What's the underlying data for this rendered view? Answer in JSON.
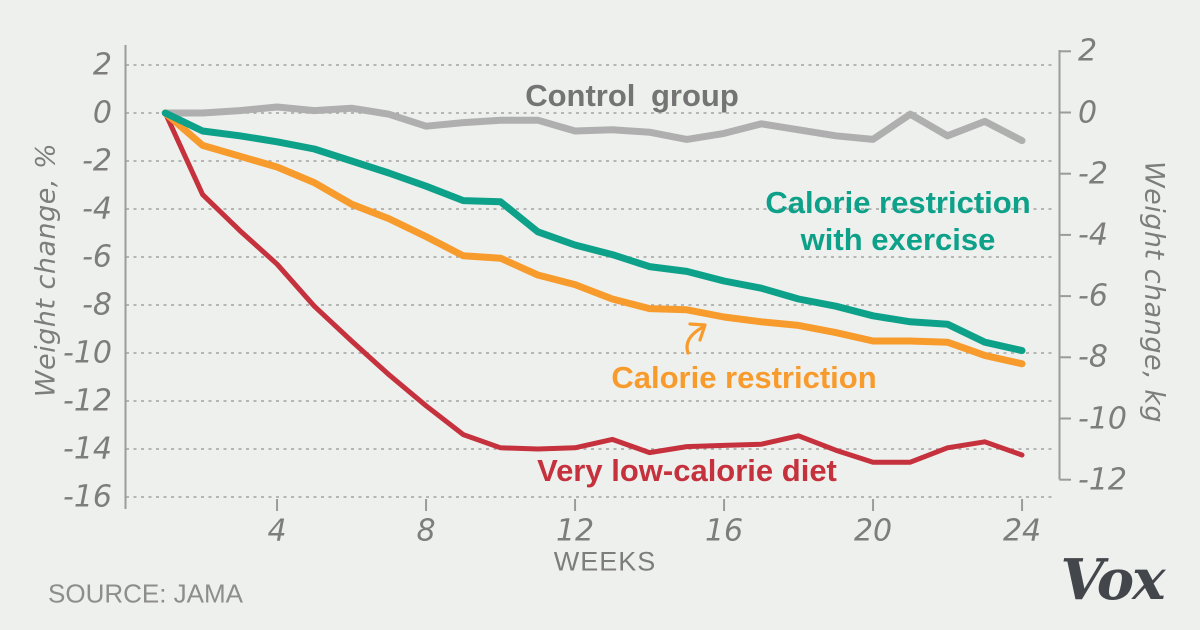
{
  "chart_data": {
    "type": "line",
    "x_label": "WEEKS",
    "x": [
      1,
      2,
      3,
      4,
      5,
      6,
      7,
      8,
      9,
      10,
      11,
      12,
      13,
      14,
      15,
      16,
      17,
      18,
      19,
      20,
      21,
      22,
      23,
      24
    ],
    "series": [
      {
        "name": "Control group",
        "key": "control",
        "color": "#afafaf",
        "stroke_width": 7,
        "values": [
          0,
          0,
          0.1,
          0.25,
          0.1,
          0.2,
          -0.05,
          -0.55,
          -0.4,
          -0.3,
          -0.3,
          -0.75,
          -0.7,
          -0.8,
          -1.1,
          -0.85,
          -0.45,
          -0.7,
          -0.95,
          -1.1,
          -0.05,
          -0.95,
          -0.35,
          -1.15
        ]
      },
      {
        "name": "Calorie restriction with exercise",
        "key": "with_exercise",
        "color": "#0ea18a",
        "stroke_width": 7,
        "values": [
          0,
          -0.75,
          -0.95,
          -1.2,
          -1.5,
          -2.0,
          -2.5,
          -3.05,
          -3.65,
          -3.7,
          -4.95,
          -5.5,
          -5.9,
          -6.4,
          -6.6,
          -7.0,
          -7.3,
          -7.75,
          -8.05,
          -8.45,
          -8.7,
          -8.8,
          -9.55,
          -9.9
        ]
      },
      {
        "name": "Calorie restriction",
        "key": "calorie_restriction",
        "color": "#f89b2d",
        "stroke_width": 7,
        "values": [
          0,
          -1.35,
          -1.8,
          -2.25,
          -2.9,
          -3.8,
          -4.4,
          -5.15,
          -5.95,
          -6.05,
          -6.75,
          -7.15,
          -7.75,
          -8.15,
          -8.2,
          -8.5,
          -8.7,
          -8.85,
          -9.15,
          -9.5,
          -9.5,
          -9.55,
          -10.1,
          -10.45
        ]
      },
      {
        "name": "Very low-calorie diet",
        "key": "very_low_calorie",
        "color": "#c5313c",
        "stroke_width": 5,
        "values": [
          0,
          -3.4,
          -4.9,
          -6.3,
          -8.05,
          -9.5,
          -10.9,
          -12.2,
          -13.4,
          -13.95,
          -14.0,
          -13.95,
          -13.6,
          -14.15,
          -13.9,
          -13.85,
          -13.8,
          -13.45,
          -14.05,
          -14.55,
          -14.55,
          -13.95,
          -13.7,
          -14.25
        ]
      }
    ],
    "x_axis": {
      "label": "WEEKS",
      "ticks": [
        4,
        8,
        12,
        16,
        20,
        24
      ],
      "range": [
        1,
        24
      ]
    },
    "y_axis_left": {
      "label": "Weight change, %",
      "ticks": [
        2,
        0,
        -2,
        -4,
        -6,
        -8,
        -10,
        -12,
        -14,
        -16
      ],
      "range": [
        2,
        -16
      ]
    },
    "y_axis_right": {
      "label": "Weight change, kg",
      "ticks": [
        2,
        0,
        -2,
        -4,
        -6,
        -8,
        -10,
        -12
      ],
      "range": [
        2,
        -12
      ]
    },
    "grid": true,
    "gridline_style": "dashed",
    "legend_position": "inline-labels"
  },
  "annotations": {
    "control_label": "Control group",
    "exercise_label_line1": "Calorie restriction",
    "exercise_label_line2": "with exercise",
    "restriction_label": "Calorie restriction",
    "vlcd_label": "Very low-calorie diet",
    "arrow": "arrow from Calorie restriction label to orange line"
  },
  "footer": {
    "source": "SOURCE: JAMA",
    "logo": "Vox"
  },
  "colors": {
    "background": "#eef0ed",
    "teal": "#0ea18a",
    "orange": "#f89b2d",
    "red": "#c5313c",
    "gray_line": "#afafaf",
    "axis": "#9b9b9b",
    "grid": "#a2a2a2",
    "tick_text": "#7d7d7d",
    "logo_text": "#43464b"
  }
}
